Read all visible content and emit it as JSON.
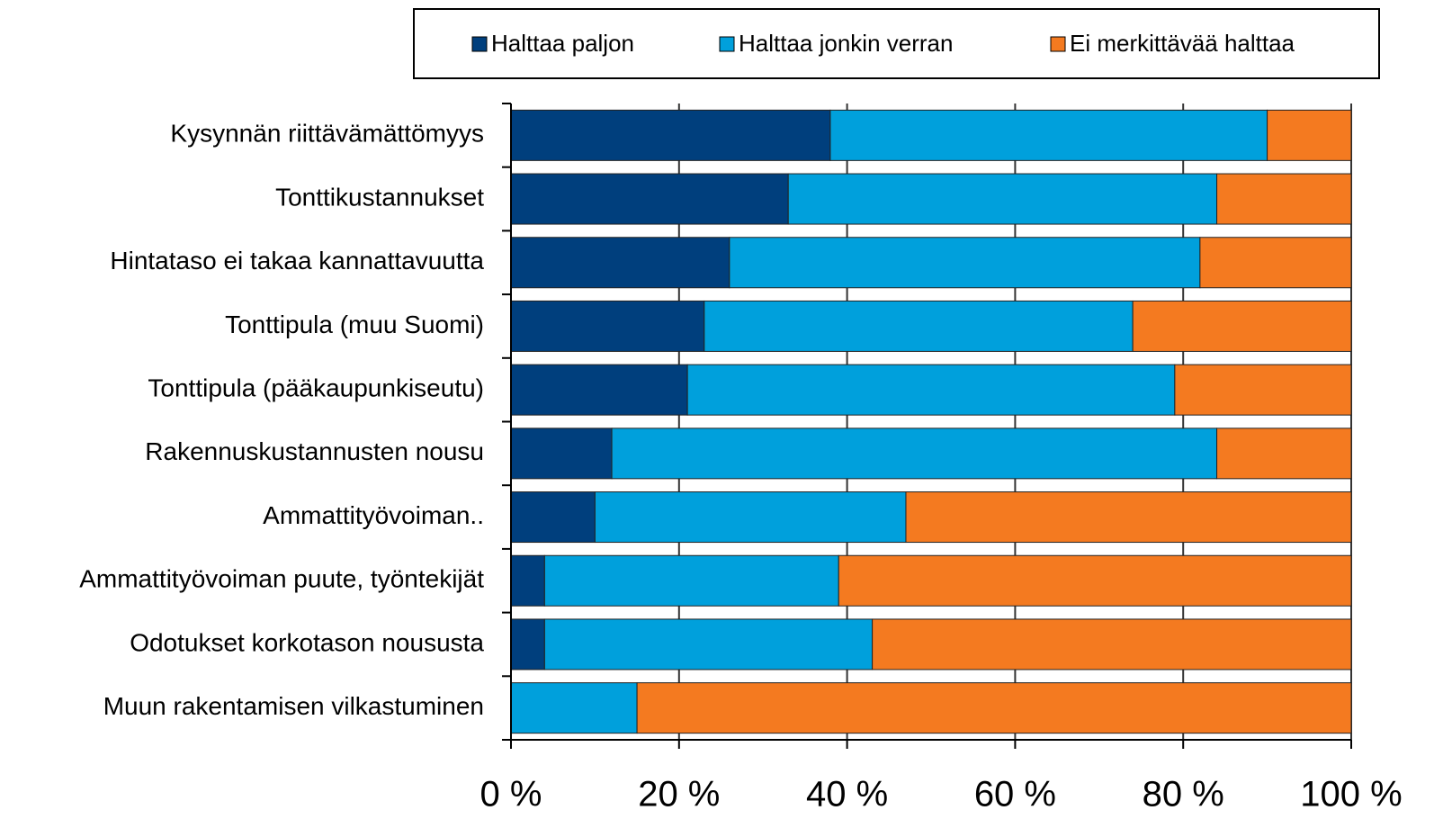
{
  "chart_data": {
    "type": "stacked-bar-horizontal",
    "categories": [
      "Kysynnän riittävämättömyys",
      "Tonttikustannukset",
      "Hintataso ei takaa kannattavuutta",
      "Tonttipula (muu Suomi)",
      "Tonttipula (pääkaupunkiseutu)",
      "Rakennuskustannusten nousu",
      "Ammattityövoiman..",
      "Ammattityövoiman puute, työntekijät",
      "Odotukset korkotason noususta",
      "Muun rakentamisen vilkastuminen"
    ],
    "series": [
      {
        "name": "Halttaa paljon",
        "color": "#003f7d",
        "values": [
          38,
          33,
          26,
          23,
          21,
          12,
          10,
          4,
          4,
          0
        ]
      },
      {
        "name": "Halttaa jonkin verran",
        "color": "#00a0dc",
        "values": [
          52,
          51,
          56,
          51,
          58,
          72,
          37,
          35,
          39,
          15
        ]
      },
      {
        "name": "Ei merkittävää halttaa",
        "color": "#f47a20",
        "values": [
          10,
          16,
          18,
          26,
          21,
          16,
          53,
          61,
          57,
          85
        ]
      }
    ],
    "xlim": [
      0,
      100
    ],
    "xticks": [
      {
        "value": 0,
        "label": "0 %"
      },
      {
        "value": 20,
        "label": "20 %"
      },
      {
        "value": 40,
        "label": "40 %"
      },
      {
        "value": 60,
        "label": "60 %"
      },
      {
        "value": 80,
        "label": "80 %"
      },
      {
        "value": 100,
        "label": "100 %"
      }
    ],
    "grid": true,
    "legend": "top"
  }
}
